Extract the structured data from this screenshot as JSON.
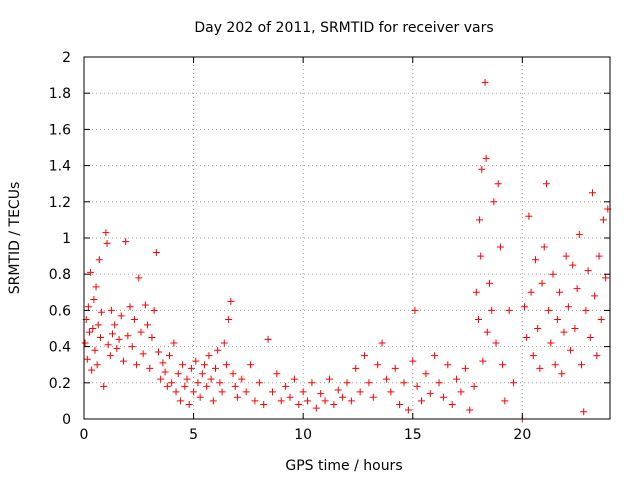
{
  "colors": {
    "series": "#ff0000",
    "axis": "#000000",
    "grid": "#a0a0a0",
    "background": "#ffffff"
  },
  "chart_data": {
    "type": "scatter",
    "title": "Day 202 of 2011, SRMTID for receiver vars",
    "xlabel": "GPS time / hours",
    "ylabel": "SRMTID / TECUs",
    "xlim": [
      0,
      24
    ],
    "ylim": [
      0,
      2
    ],
    "xticks": [
      0,
      5,
      10,
      15,
      20
    ],
    "xtick_labels": [
      "0",
      "5",
      "10",
      "15",
      "20"
    ],
    "yticks": [
      0,
      0.2,
      0.4,
      0.6,
      0.8,
      1.0,
      1.2,
      1.4,
      1.6,
      1.8,
      2.0
    ],
    "ytick_labels": [
      "0",
      "0.2",
      "0.4",
      "0.6",
      "0.8",
      "1",
      "1.2",
      "1.4",
      "1.6",
      "1.8",
      "2"
    ],
    "grid": true,
    "marker": "+",
    "series": [
      {
        "name": "SRMTID",
        "color": "#ff0000",
        "points": [
          [
            0.05,
            0.42
          ],
          [
            0.1,
            0.55
          ],
          [
            0.15,
            0.33
          ],
          [
            0.2,
            0.62
          ],
          [
            0.25,
            0.48
          ],
          [
            0.3,
            0.81
          ],
          [
            0.35,
            0.27
          ],
          [
            0.4,
            0.5
          ],
          [
            0.45,
            0.66
          ],
          [
            0.5,
            0.38
          ],
          [
            0.55,
            0.73
          ],
          [
            0.6,
            0.3
          ],
          [
            0.65,
            0.52
          ],
          [
            0.7,
            0.88
          ],
          [
            0.75,
            0.45
          ],
          [
            0.8,
            0.59
          ],
          [
            0.9,
            0.18
          ],
          [
            1.0,
            1.03
          ],
          [
            1.05,
            0.97
          ],
          [
            1.1,
            0.41
          ],
          [
            1.2,
            0.35
          ],
          [
            1.25,
            0.6
          ],
          [
            1.3,
            0.47
          ],
          [
            1.4,
            0.52
          ],
          [
            1.5,
            0.39
          ],
          [
            1.6,
            0.44
          ],
          [
            1.7,
            0.57
          ],
          [
            1.8,
            0.32
          ],
          [
            1.9,
            0.98
          ],
          [
            2.0,
            0.46
          ],
          [
            2.1,
            0.62
          ],
          [
            2.2,
            0.4
          ],
          [
            2.3,
            0.55
          ],
          [
            2.4,
            0.3
          ],
          [
            2.5,
            0.78
          ],
          [
            2.6,
            0.48
          ],
          [
            2.7,
            0.36
          ],
          [
            2.8,
            0.63
          ],
          [
            2.9,
            0.52
          ],
          [
            3.0,
            0.28
          ],
          [
            3.1,
            0.45
          ],
          [
            3.2,
            0.6
          ],
          [
            3.3,
            0.92
          ],
          [
            3.4,
            0.37
          ],
          [
            3.5,
            0.22
          ],
          [
            3.6,
            0.31
          ],
          [
            3.7,
            0.26
          ],
          [
            3.8,
            0.18
          ],
          [
            3.9,
            0.35
          ],
          [
            4.0,
            0.2
          ],
          [
            4.1,
            0.42
          ],
          [
            4.2,
            0.15
          ],
          [
            4.3,
            0.25
          ],
          [
            4.4,
            0.1
          ],
          [
            4.5,
            0.3
          ],
          [
            4.6,
            0.18
          ],
          [
            4.7,
            0.22
          ],
          [
            4.8,
            0.08
          ],
          [
            4.9,
            0.28
          ],
          [
            5.0,
            0.15
          ],
          [
            5.1,
            0.32
          ],
          [
            5.2,
            0.2
          ],
          [
            5.3,
            0.12
          ],
          [
            5.4,
            0.25
          ],
          [
            5.5,
            0.3
          ],
          [
            5.6,
            0.18
          ],
          [
            5.7,
            0.35
          ],
          [
            5.8,
            0.22
          ],
          [
            5.9,
            0.1
          ],
          [
            6.0,
            0.28
          ],
          [
            6.1,
            0.38
          ],
          [
            6.2,
            0.2
          ],
          [
            6.3,
            0.15
          ],
          [
            6.4,
            0.42
          ],
          [
            6.5,
            0.3
          ],
          [
            6.6,
            0.55
          ],
          [
            6.7,
            0.65
          ],
          [
            6.8,
            0.25
          ],
          [
            6.9,
            0.18
          ],
          [
            7.0,
            0.12
          ],
          [
            7.2,
            0.22
          ],
          [
            7.4,
            0.15
          ],
          [
            7.6,
            0.3
          ],
          [
            7.8,
            0.1
          ],
          [
            8.0,
            0.2
          ],
          [
            8.2,
            0.08
          ],
          [
            8.4,
            0.44
          ],
          [
            8.6,
            0.15
          ],
          [
            8.8,
            0.25
          ],
          [
            9.0,
            0.1
          ],
          [
            9.2,
            0.18
          ],
          [
            9.4,
            0.12
          ],
          [
            9.6,
            0.22
          ],
          [
            9.8,
            0.08
          ],
          [
            10.0,
            0.15
          ],
          [
            10.2,
            0.1
          ],
          [
            10.4,
            0.2
          ],
          [
            10.6,
            0.06
          ],
          [
            10.8,
            0.14
          ],
          [
            11.0,
            0.1
          ],
          [
            11.2,
            0.22
          ],
          [
            11.4,
            0.08
          ],
          [
            11.6,
            0.16
          ],
          [
            11.8,
            0.12
          ],
          [
            12.0,
            0.2
          ],
          [
            12.2,
            0.1
          ],
          [
            12.4,
            0.28
          ],
          [
            12.6,
            0.15
          ],
          [
            12.8,
            0.35
          ],
          [
            13.0,
            0.2
          ],
          [
            13.2,
            0.12
          ],
          [
            13.4,
            0.3
          ],
          [
            13.6,
            0.42
          ],
          [
            13.8,
            0.22
          ],
          [
            14.0,
            0.15
          ],
          [
            14.2,
            0.28
          ],
          [
            14.4,
            0.08
          ],
          [
            14.6,
            0.2
          ],
          [
            14.8,
            0.05
          ],
          [
            15.0,
            0.32
          ],
          [
            15.1,
            0.6
          ],
          [
            15.2,
            0.18
          ],
          [
            15.4,
            0.1
          ],
          [
            15.6,
            0.25
          ],
          [
            15.8,
            0.14
          ],
          [
            16.0,
            0.35
          ],
          [
            16.2,
            0.2
          ],
          [
            16.4,
            0.12
          ],
          [
            16.6,
            0.3
          ],
          [
            16.8,
            0.08
          ],
          [
            17.0,
            0.22
          ],
          [
            17.2,
            0.15
          ],
          [
            17.4,
            0.28
          ],
          [
            17.6,
            0.05
          ],
          [
            17.8,
            0.18
          ],
          [
            17.9,
            0.7
          ],
          [
            18.0,
            0.55
          ],
          [
            18.05,
            1.1
          ],
          [
            18.1,
            0.9
          ],
          [
            18.15,
            1.38
          ],
          [
            18.2,
            0.32
          ],
          [
            18.3,
            1.86
          ],
          [
            18.35,
            1.44
          ],
          [
            18.4,
            0.48
          ],
          [
            18.5,
            0.75
          ],
          [
            18.6,
            0.6
          ],
          [
            18.7,
            1.2
          ],
          [
            18.8,
            0.42
          ],
          [
            18.9,
            1.3
          ],
          [
            19.0,
            0.95
          ],
          [
            19.1,
            0.3
          ],
          [
            19.2,
            0.1
          ],
          [
            19.4,
            0.6
          ],
          [
            19.6,
            0.2
          ],
          [
            20.0,
            0.0
          ],
          [
            20.1,
            0.62
          ],
          [
            20.2,
            0.45
          ],
          [
            20.3,
            1.12
          ],
          [
            20.4,
            0.7
          ],
          [
            20.5,
            0.35
          ],
          [
            20.6,
            0.88
          ],
          [
            20.7,
            0.5
          ],
          [
            20.8,
            0.28
          ],
          [
            20.9,
            0.75
          ],
          [
            21.0,
            0.95
          ],
          [
            21.1,
            1.3
          ],
          [
            21.2,
            0.6
          ],
          [
            21.3,
            0.42
          ],
          [
            21.4,
            0.8
          ],
          [
            21.5,
            0.3
          ],
          [
            21.6,
            0.55
          ],
          [
            21.7,
            0.7
          ],
          [
            21.8,
            0.25
          ],
          [
            21.9,
            0.48
          ],
          [
            22.0,
            0.9
          ],
          [
            22.1,
            0.62
          ],
          [
            22.2,
            0.38
          ],
          [
            22.3,
            0.85
          ],
          [
            22.4,
            0.5
          ],
          [
            22.5,
            0.72
          ],
          [
            22.6,
            1.02
          ],
          [
            22.7,
            0.3
          ],
          [
            22.8,
            0.04
          ],
          [
            22.9,
            0.6
          ],
          [
            23.0,
            0.82
          ],
          [
            23.1,
            0.45
          ],
          [
            23.2,
            1.25
          ],
          [
            23.3,
            0.68
          ],
          [
            23.4,
            0.35
          ],
          [
            23.5,
            0.9
          ],
          [
            23.6,
            0.55
          ],
          [
            23.7,
            1.1
          ],
          [
            23.8,
            0.78
          ],
          [
            23.9,
            1.16
          ]
        ]
      }
    ]
  }
}
